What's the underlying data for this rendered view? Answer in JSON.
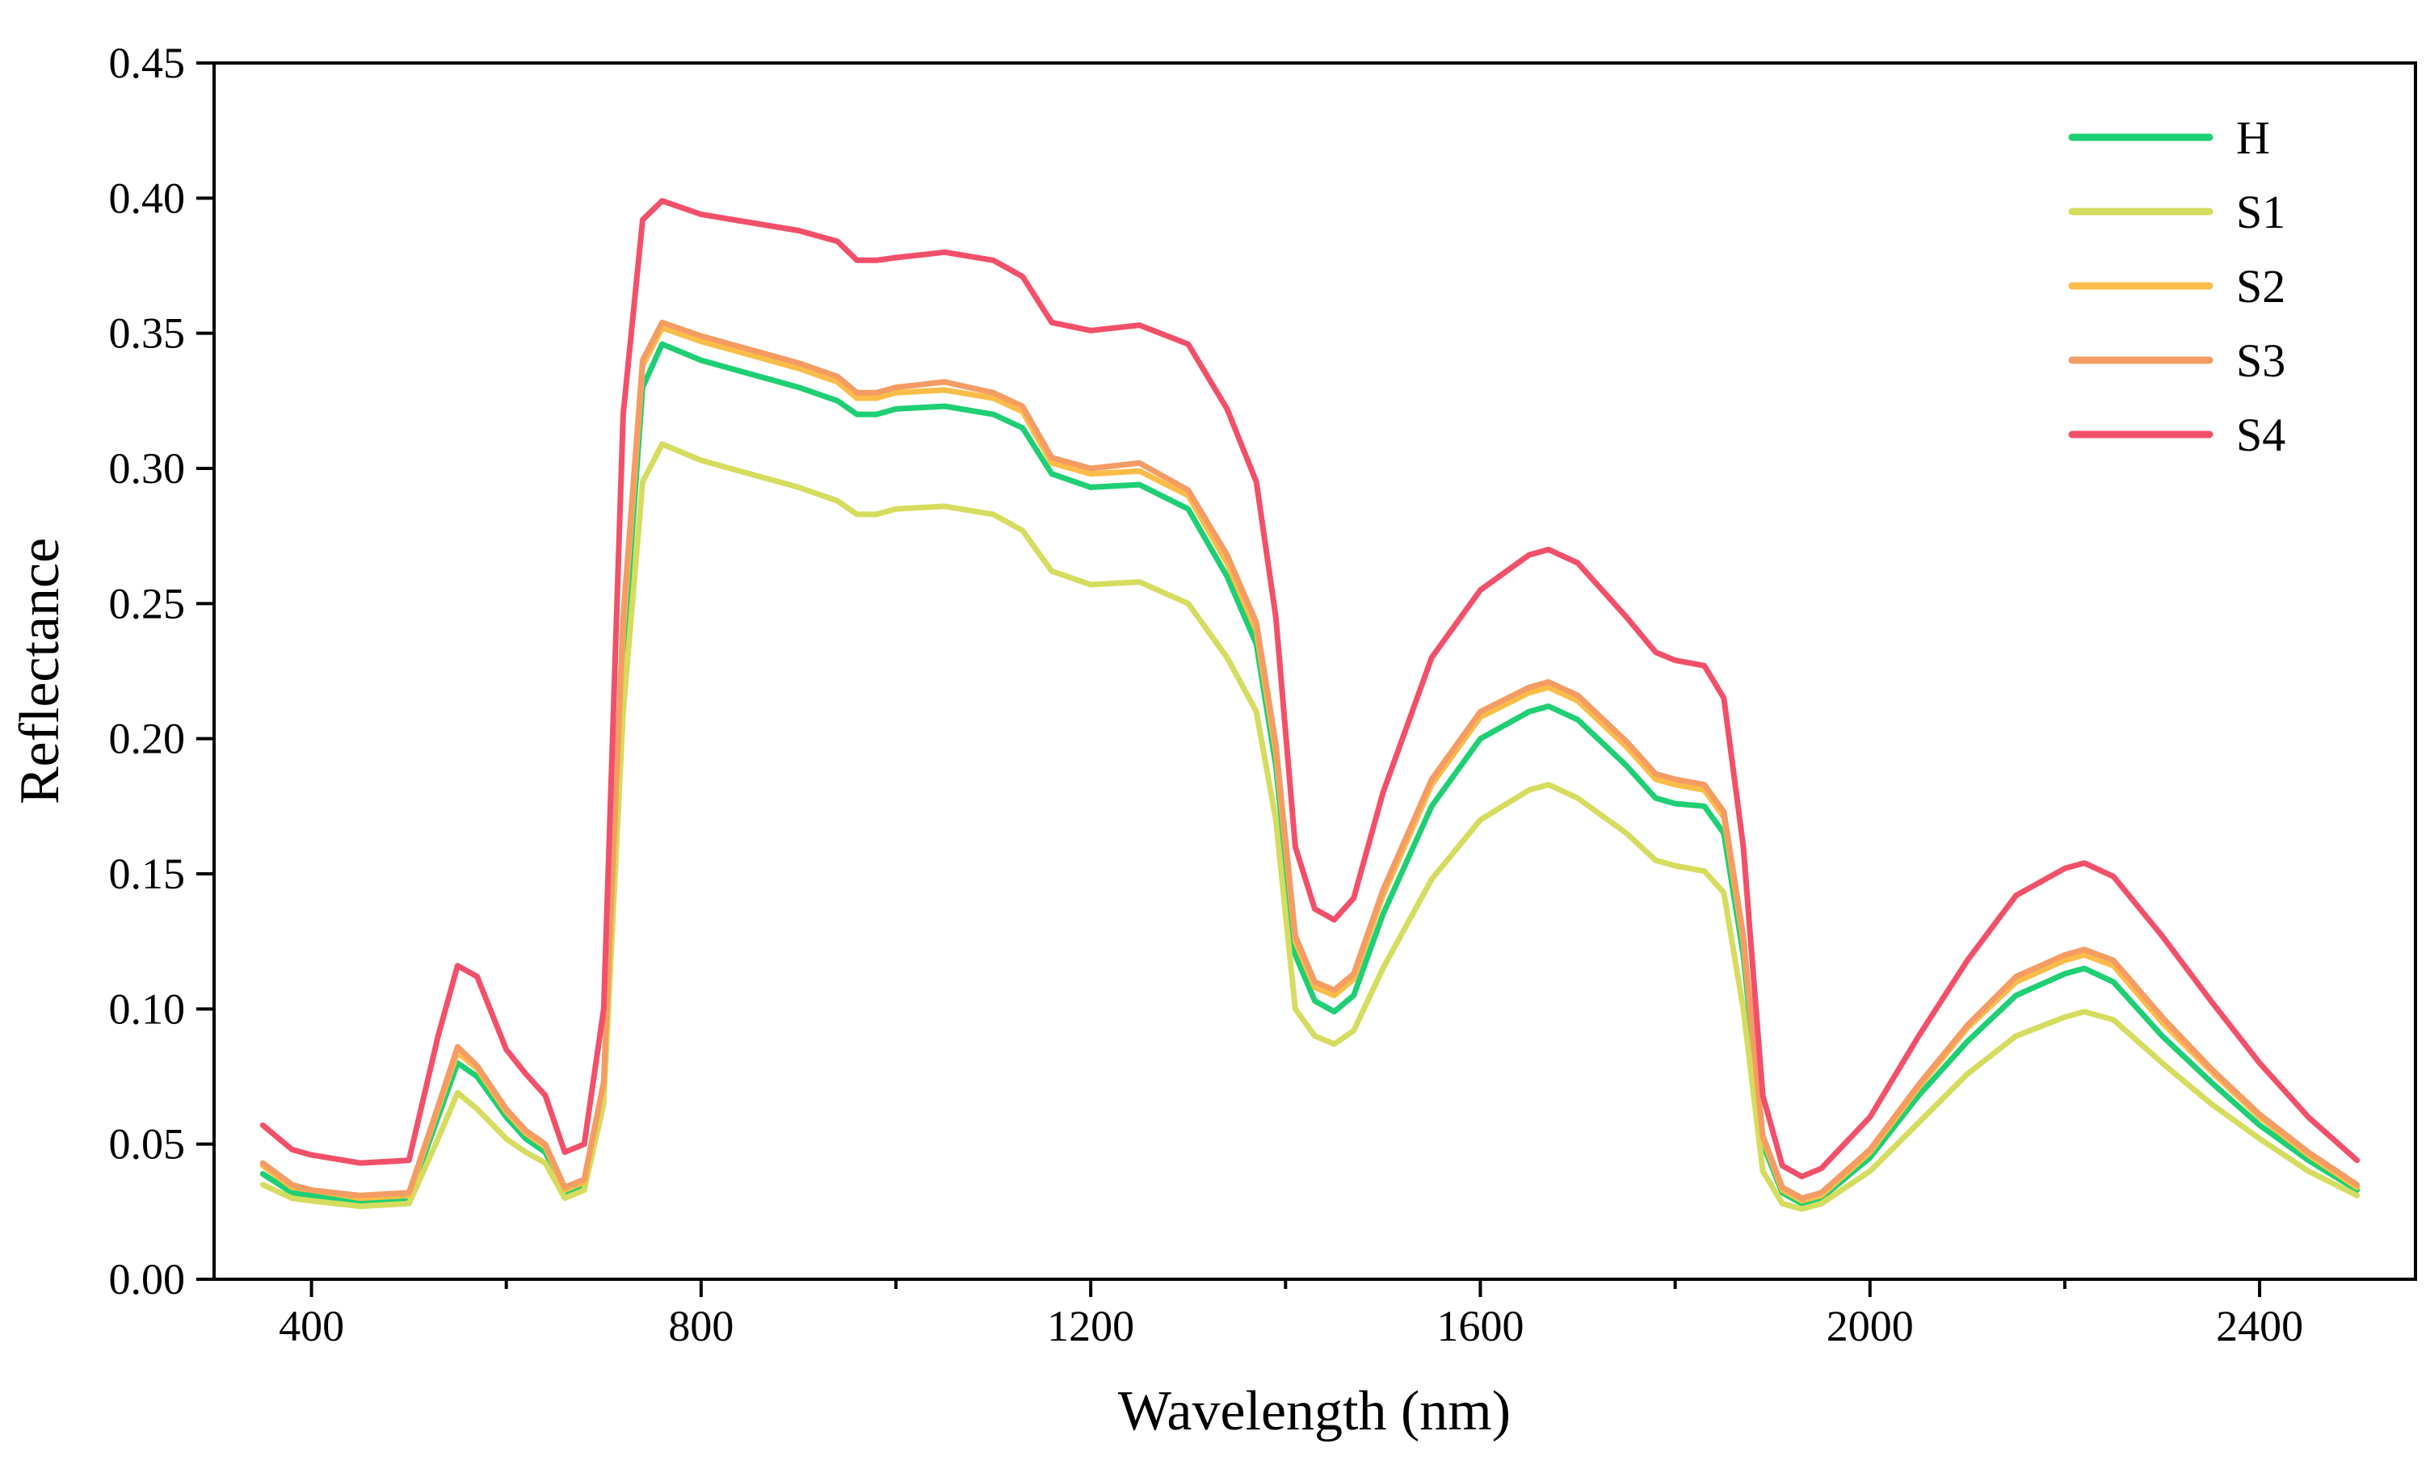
{
  "chart_data": {
    "type": "line",
    "title": "",
    "xlabel": "Wavelength (nm)",
    "ylabel": "Reflectance",
    "xlim": [
      300,
      2560
    ],
    "ylim": [
      0,
      0.45
    ],
    "xticks": [
      400,
      800,
      1200,
      1600,
      2000,
      2400
    ],
    "xtick_labels": [
      "400",
      "800",
      "1200",
      "1600",
      "2000",
      "2400"
    ],
    "xminor": [
      600,
      1000,
      1400,
      1800,
      2200
    ],
    "yticks": [
      0,
      0.05,
      0.1,
      0.15,
      0.2,
      0.25,
      0.3,
      0.35,
      0.4,
      0.45
    ],
    "ytick_labels": [
      "0.00",
      "0.05",
      "0.10",
      "0.15",
      "0.20",
      "0.25",
      "0.30",
      "0.35",
      "0.40",
      "0.45"
    ],
    "grid": false,
    "legend_position": "top-right",
    "x": [
      350,
      380,
      400,
      450,
      500,
      530,
      550,
      570,
      600,
      620,
      640,
      660,
      680,
      700,
      720,
      740,
      760,
      800,
      850,
      900,
      940,
      960,
      980,
      1000,
      1050,
      1100,
      1130,
      1160,
      1200,
      1250,
      1300,
      1340,
      1370,
      1390,
      1410,
      1430,
      1450,
      1470,
      1500,
      1550,
      1600,
      1650,
      1670,
      1700,
      1750,
      1780,
      1800,
      1830,
      1850,
      1870,
      1890,
      1910,
      1930,
      1950,
      2000,
      2050,
      2100,
      2150,
      2200,
      2220,
      2250,
      2300,
      2350,
      2400,
      2450,
      2500
    ],
    "series": [
      {
        "name": "H",
        "color": "#1ecf74",
        "values": [
          0.039,
          0.032,
          0.031,
          0.029,
          0.03,
          0.06,
          0.08,
          0.075,
          0.06,
          0.052,
          0.047,
          0.032,
          0.035,
          0.07,
          0.23,
          0.33,
          0.346,
          0.34,
          0.335,
          0.33,
          0.325,
          0.32,
          0.32,
          0.322,
          0.323,
          0.32,
          0.315,
          0.298,
          0.293,
          0.294,
          0.285,
          0.26,
          0.235,
          0.19,
          0.12,
          0.103,
          0.099,
          0.105,
          0.135,
          0.175,
          0.2,
          0.21,
          0.212,
          0.207,
          0.19,
          0.178,
          0.176,
          0.175,
          0.165,
          0.12,
          0.05,
          0.032,
          0.028,
          0.03,
          0.045,
          0.068,
          0.088,
          0.105,
          0.113,
          0.115,
          0.11,
          0.09,
          0.073,
          0.057,
          0.044,
          0.033
        ]
      },
      {
        "name": "S1",
        "color": "#d5dc5e",
        "values": [
          0.035,
          0.03,
          0.029,
          0.027,
          0.028,
          0.052,
          0.069,
          0.063,
          0.052,
          0.047,
          0.043,
          0.03,
          0.033,
          0.065,
          0.21,
          0.295,
          0.309,
          0.303,
          0.298,
          0.293,
          0.288,
          0.283,
          0.283,
          0.285,
          0.286,
          0.283,
          0.277,
          0.262,
          0.257,
          0.258,
          0.25,
          0.23,
          0.21,
          0.17,
          0.1,
          0.09,
          0.087,
          0.092,
          0.115,
          0.148,
          0.17,
          0.181,
          0.183,
          0.178,
          0.165,
          0.155,
          0.153,
          0.151,
          0.143,
          0.1,
          0.04,
          0.028,
          0.026,
          0.028,
          0.04,
          0.058,
          0.076,
          0.09,
          0.097,
          0.099,
          0.096,
          0.08,
          0.065,
          0.052,
          0.04,
          0.031
        ]
      },
      {
        "name": "S2",
        "color": "#fbbd47",
        "values": [
          0.042,
          0.034,
          0.033,
          0.03,
          0.031,
          0.063,
          0.084,
          0.078,
          0.062,
          0.054,
          0.049,
          0.033,
          0.036,
          0.072,
          0.24,
          0.338,
          0.352,
          0.347,
          0.342,
          0.337,
          0.332,
          0.326,
          0.326,
          0.328,
          0.329,
          0.326,
          0.321,
          0.302,
          0.298,
          0.299,
          0.29,
          0.265,
          0.24,
          0.195,
          0.125,
          0.108,
          0.105,
          0.111,
          0.142,
          0.183,
          0.208,
          0.217,
          0.219,
          0.214,
          0.197,
          0.185,
          0.183,
          0.181,
          0.171,
          0.125,
          0.052,
          0.033,
          0.029,
          0.031,
          0.047,
          0.071,
          0.093,
          0.11,
          0.118,
          0.12,
          0.116,
          0.095,
          0.077,
          0.06,
          0.046,
          0.034
        ]
      },
      {
        "name": "S3",
        "color": "#f49c63",
        "values": [
          0.043,
          0.035,
          0.033,
          0.031,
          0.032,
          0.064,
          0.086,
          0.079,
          0.063,
          0.055,
          0.05,
          0.034,
          0.037,
          0.073,
          0.245,
          0.34,
          0.354,
          0.349,
          0.344,
          0.339,
          0.334,
          0.328,
          0.328,
          0.33,
          0.332,
          0.328,
          0.323,
          0.304,
          0.3,
          0.302,
          0.292,
          0.268,
          0.243,
          0.198,
          0.127,
          0.11,
          0.107,
          0.113,
          0.144,
          0.185,
          0.21,
          0.219,
          0.221,
          0.216,
          0.199,
          0.187,
          0.185,
          0.183,
          0.173,
          0.127,
          0.053,
          0.034,
          0.03,
          0.032,
          0.048,
          0.072,
          0.094,
          0.112,
          0.12,
          0.122,
          0.118,
          0.097,
          0.078,
          0.061,
          0.047,
          0.035
        ]
      },
      {
        "name": "S4",
        "color": "#f2506a",
        "values": [
          0.057,
          0.048,
          0.046,
          0.043,
          0.044,
          0.09,
          0.116,
          0.112,
          0.085,
          0.076,
          0.068,
          0.047,
          0.05,
          0.1,
          0.32,
          0.392,
          0.399,
          0.394,
          0.391,
          0.388,
          0.384,
          0.377,
          0.377,
          0.378,
          0.38,
          0.377,
          0.371,
          0.354,
          0.351,
          0.353,
          0.346,
          0.322,
          0.295,
          0.245,
          0.16,
          0.137,
          0.133,
          0.141,
          0.18,
          0.23,
          0.255,
          0.268,
          0.27,
          0.265,
          0.245,
          0.232,
          0.229,
          0.227,
          0.215,
          0.16,
          0.068,
          0.042,
          0.038,
          0.041,
          0.06,
          0.09,
          0.118,
          0.142,
          0.152,
          0.154,
          0.149,
          0.127,
          0.103,
          0.08,
          0.06,
          0.044
        ]
      }
    ]
  }
}
